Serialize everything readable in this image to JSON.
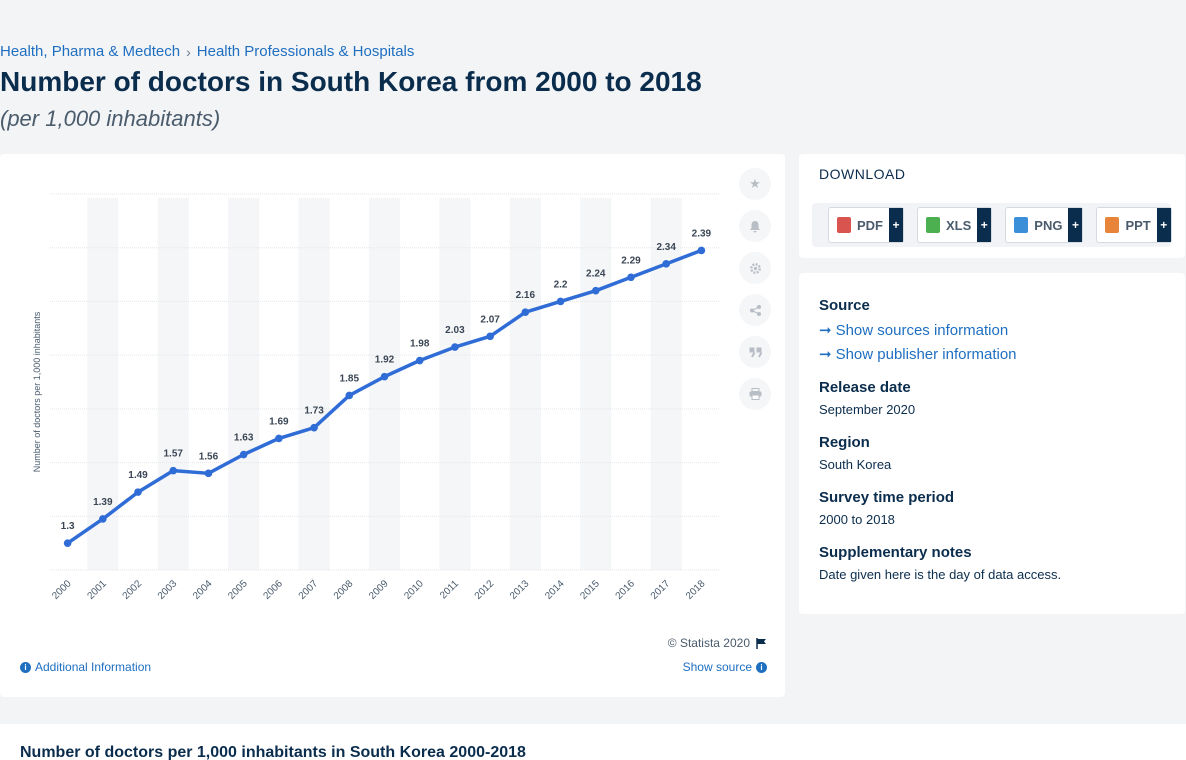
{
  "breadcrumb": {
    "item1": "Health, Pharma & Medtech",
    "separator": "›",
    "item2": "Health Professionals & Hospitals"
  },
  "header": {
    "title": "Number of doctors in South Korea from 2000 to 2018",
    "subtitle": "(per 1,000 inhabitants)"
  },
  "chart_data": {
    "type": "line",
    "title": "",
    "xlabel": "",
    "ylabel": "Number of doctors per 1,000 inhabitants",
    "categories": [
      "2000",
      "2001",
      "2002",
      "2003",
      "2004",
      "2005",
      "2006",
      "2007",
      "2008",
      "2009",
      "2010",
      "2011",
      "2012",
      "2013",
      "2014",
      "2015",
      "2016",
      "2017",
      "2018"
    ],
    "values": [
      1.3,
      1.39,
      1.49,
      1.57,
      1.56,
      1.63,
      1.69,
      1.73,
      1.85,
      1.92,
      1.98,
      2.03,
      2.07,
      2.16,
      2.2,
      2.24,
      2.29,
      2.34,
      2.39
    ],
    "data_labels": [
      "1.3",
      "1.39",
      "1.49",
      "1.57",
      "1.56",
      "1.63",
      "1.69",
      "1.73",
      "1.85",
      "1.92",
      "1.98",
      "2.03",
      "2.07",
      "2.16",
      "2.2",
      "2.24",
      "2.29",
      "2.34",
      "2.39"
    ],
    "ylim": [
      1.2,
      2.6
    ],
    "y_tick_labels_shown": false,
    "grid": true,
    "series_color": "#2f6cd6",
    "column_band_color": "#f5f6f8"
  },
  "chart_footer": {
    "credit": "© Statista 2020",
    "additional_info": "Additional Information",
    "show_source": "Show source"
  },
  "toolbar": {
    "icons": [
      "star-icon",
      "bell-icon",
      "gear-icon",
      "share-icon",
      "quote-icon",
      "print-icon"
    ]
  },
  "download": {
    "title": "DOWNLOAD",
    "buttons": [
      {
        "label": "PDF",
        "color": "#d9534f"
      },
      {
        "label": "XLS",
        "color": "#4caf50"
      },
      {
        "label": "PNG",
        "color": "#3b8fd9"
      },
      {
        "label": "PPT",
        "color": "#e8833a"
      }
    ],
    "plus": "+"
  },
  "info": {
    "source_heading": "Source",
    "show_sources": "Show sources information",
    "show_publisher": "Show publisher information",
    "release_heading": "Release date",
    "release_value": "September 2020",
    "region_heading": "Region",
    "region_value": "South Korea",
    "survey_heading": "Survey time period",
    "survey_value": "2000 to 2018",
    "notes_heading": "Supplementary notes",
    "notes_value": "Date given here is the day of data access."
  },
  "bottom": {
    "title": "Number of doctors per 1,000 inhabitants in South Korea 2000-2018"
  }
}
